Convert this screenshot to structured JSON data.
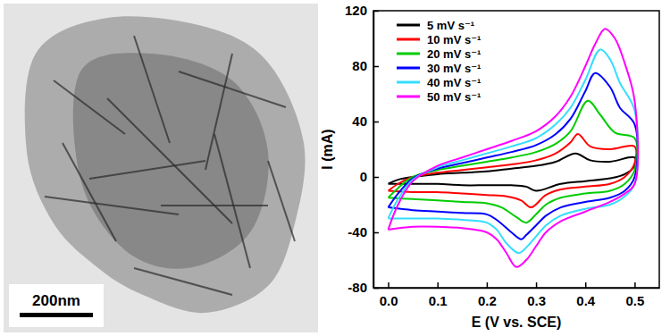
{
  "chart_data": {
    "type": "line",
    "x_label": "E (V vs. SCE)",
    "y_label": "I (mA)",
    "xlim": [
      -0.03,
      0.55
    ],
    "xticks": [
      {
        "value": 0,
        "label": "0.0"
      },
      0.1,
      0.2,
      0.3,
      0.4,
      0.5
    ],
    "ylim": [
      -80,
      120
    ],
    "yticks": [
      -80,
      -40,
      0,
      40,
      80,
      120
    ],
    "grid": false,
    "legend": "upper left",
    "series": [
      {
        "name": "5 mV s⁻¹",
        "color": "#000000",
        "x": [
          0,
          0.02,
          0.05,
          0.1,
          0.15,
          0.2,
          0.25,
          0.3,
          0.34,
          0.38,
          0.41,
          0.45,
          0.5,
          0.5,
          0.48,
          0.45,
          0.4,
          0.35,
          0.3,
          0.28,
          0.25,
          0.2,
          0.15,
          0.1,
          0.05,
          0
        ],
        "values": [
          -5,
          -2,
          0,
          2,
          3,
          4,
          6,
          8,
          11,
          17,
          12,
          11,
          14,
          8,
          2,
          -1,
          -3,
          -5,
          -10,
          -7,
          -6,
          -6,
          -6,
          -5,
          -5,
          -5
        ]
      },
      {
        "name": "10 mV s⁻¹",
        "color": "#ff0000",
        "x": [
          0,
          0.02,
          0.05,
          0.1,
          0.15,
          0.2,
          0.25,
          0.3,
          0.34,
          0.37,
          0.385,
          0.41,
          0.45,
          0.5,
          0.5,
          0.48,
          0.45,
          0.4,
          0.35,
          0.32,
          0.29,
          0.27,
          0.24,
          0.2,
          0.15,
          0.1,
          0.05,
          0
        ],
        "values": [
          -10,
          -5,
          0,
          3,
          5,
          7,
          9,
          12,
          17,
          25,
          31,
          22,
          20,
          22,
          10,
          0,
          -5,
          -7,
          -9,
          -13,
          -22,
          -17,
          -14,
          -13,
          -12,
          -11,
          -11,
          -10
        ]
      },
      {
        "name": "20 mV s⁻¹",
        "color": "#00cc00",
        "x": [
          0,
          0.02,
          0.05,
          0.1,
          0.15,
          0.2,
          0.25,
          0.3,
          0.34,
          0.37,
          0.405,
          0.43,
          0.46,
          0.5,
          0.5,
          0.48,
          0.45,
          0.4,
          0.35,
          0.32,
          0.3,
          0.28,
          0.26,
          0.23,
          0.2,
          0.15,
          0.1,
          0.05,
          0
        ],
        "values": [
          -15,
          -8,
          0,
          5,
          8,
          11,
          14,
          18,
          24,
          33,
          55,
          45,
          32,
          28,
          5,
          -5,
          -10,
          -12,
          -15,
          -20,
          -27,
          -33,
          -29,
          -22,
          -19,
          -18,
          -17,
          -16,
          -15
        ]
      },
      {
        "name": "30 mV s⁻¹",
        "color": "#0000ff",
        "x": [
          0,
          0.02,
          0.05,
          0.1,
          0.15,
          0.2,
          0.25,
          0.3,
          0.34,
          0.37,
          0.4,
          0.42,
          0.45,
          0.47,
          0.5,
          0.5,
          0.48,
          0.45,
          0.4,
          0.35,
          0.32,
          0.3,
          0.28,
          0.27,
          0.25,
          0.22,
          0.2,
          0.15,
          0.1,
          0.05,
          0
        ],
        "values": [
          -22,
          -12,
          -1,
          6,
          10,
          14,
          18,
          23,
          31,
          42,
          62,
          75,
          65,
          50,
          38,
          0,
          -10,
          -15,
          -18,
          -22,
          -28,
          -35,
          -42,
          -45,
          -40,
          -31,
          -27,
          -26,
          -25,
          -24,
          -22
        ]
      },
      {
        "name": "40 mV s⁻¹",
        "color": "#33ddff",
        "x": [
          0,
          0.02,
          0.05,
          0.1,
          0.15,
          0.2,
          0.25,
          0.3,
          0.34,
          0.37,
          0.4,
          0.43,
          0.45,
          0.47,
          0.5,
          0.5,
          0.48,
          0.45,
          0.4,
          0.35,
          0.32,
          0.3,
          0.28,
          0.265,
          0.24,
          0.22,
          0.2,
          0.15,
          0.1,
          0.05,
          0
        ],
        "values": [
          -30,
          -16,
          -2,
          7,
          12,
          17,
          22,
          28,
          38,
          50,
          70,
          92,
          85,
          68,
          48,
          -5,
          -14,
          -20,
          -23,
          -28,
          -35,
          -43,
          -51,
          -55,
          -48,
          -38,
          -33,
          -31,
          -30,
          -30,
          -30
        ]
      },
      {
        "name": "50 mV s⁻¹",
        "color": "#ff00ff",
        "x": [
          0,
          0.02,
          0.05,
          0.1,
          0.15,
          0.2,
          0.25,
          0.3,
          0.34,
          0.37,
          0.4,
          0.42,
          0.44,
          0.46,
          0.48,
          0.5,
          0.5,
          0.48,
          0.45,
          0.4,
          0.35,
          0.32,
          0.3,
          0.28,
          0.26,
          0.24,
          0.22,
          0.2,
          0.15,
          0.1,
          0.05,
          0
        ],
        "values": [
          -38,
          -20,
          -3,
          8,
          14,
          20,
          26,
          33,
          44,
          58,
          80,
          96,
          107,
          100,
          82,
          55,
          -5,
          -12,
          -18,
          -25,
          -32,
          -40,
          -50,
          -60,
          -65,
          -55,
          -45,
          -40,
          -37,
          -36,
          -36,
          -38
        ]
      }
    ]
  },
  "micrograph": {
    "scale_bar": "200nm"
  }
}
